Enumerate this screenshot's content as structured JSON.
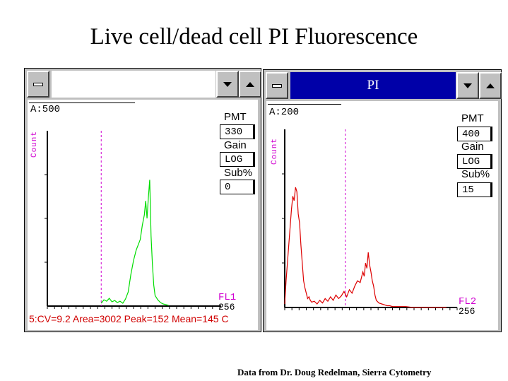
{
  "slide": {
    "title": "Live cell/dead cell PI Fluorescence",
    "credit": "Data from Dr. Doug Redelman, Sierra Cytometry"
  },
  "colors": {
    "window_frame": "#c0c0c0",
    "active_titlebar": "#0000a8",
    "live_trace": "#00dd00",
    "dead_trace": "#dd0000",
    "marker": "#d000d0",
    "stats_text": "#d00000"
  },
  "window_left": {
    "caption": "",
    "region": "A:500",
    "axis_label": "Count",
    "controls": [
      {
        "label": "PMT",
        "value": "330"
      },
      {
        "label": "Gain",
        "value": "LOG"
      },
      {
        "label": "Sub%",
        "value": "0"
      }
    ],
    "x_label": "FL1",
    "x_max_label": "256",
    "stats": "5:CV=9.2 Area=3002 Peak=152 Mean=145 C",
    "icons": [
      "system-menu-icon",
      "minimize-arrow-icon",
      "maximize-arrow-icon"
    ]
  },
  "window_right": {
    "caption": "PI",
    "region": "A:200",
    "axis_label": "Count",
    "controls": [
      {
        "label": "PMT",
        "value": "400"
      },
      {
        "label": "Gain",
        "value": "LOG"
      },
      {
        "label": "Sub%",
        "value": "15"
      }
    ],
    "x_label": "FL2",
    "x_max_label": "256",
    "icons": [
      "system-menu-icon",
      "minimize-arrow-icon",
      "maximize-arrow-icon"
    ]
  },
  "chart_data": [
    {
      "type": "line",
      "title": "",
      "xlabel": "FL1",
      "ylabel": "Count",
      "xlim": [
        0,
        256
      ],
      "ylim": [
        0,
        500
      ],
      "marker_x": 80,
      "series": [
        {
          "x": [
            80,
            84,
            88,
            92,
            96,
            100,
            104,
            108,
            112,
            116,
            120,
            124,
            128,
            132,
            135,
            138,
            141,
            144,
            146,
            148,
            150,
            152,
            154,
            156,
            158,
            160,
            164,
            168,
            172,
            176,
            180
          ],
          "values": [
            8,
            18,
            14,
            22,
            12,
            16,
            10,
            14,
            8,
            20,
            40,
            90,
            130,
            160,
            175,
            190,
            230,
            260,
            300,
            250,
            310,
            360,
            200,
            120,
            60,
            30,
            18,
            10,
            6,
            4,
            2
          ]
        }
      ]
    },
    {
      "type": "line",
      "title": "",
      "xlabel": "FL2",
      "ylabel": "Count",
      "xlim": [
        0,
        256
      ],
      "ylim": [
        0,
        200
      ],
      "marker_x": 90,
      "series": [
        {
          "x": [
            0,
            2,
            4,
            6,
            8,
            10,
            12,
            14,
            16,
            18,
            20,
            22,
            24,
            26,
            28,
            30,
            32,
            34,
            36,
            38,
            40,
            44,
            48,
            52,
            56,
            60,
            64,
            68,
            72,
            76,
            80,
            84,
            88,
            92,
            96,
            100,
            104,
            108,
            112,
            116,
            118,
            120,
            122,
            124,
            126,
            128,
            130,
            132,
            134,
            136,
            140,
            144,
            148,
            152,
            156,
            160,
            170,
            180,
            190,
            200,
            220,
            240
          ],
          "values": [
            4,
            30,
            50,
            70,
            90,
            110,
            125,
            120,
            135,
            130,
            105,
            95,
            70,
            50,
            30,
            22,
            16,
            10,
            12,
            8,
            6,
            7,
            4,
            8,
            5,
            10,
            7,
            12,
            8,
            14,
            10,
            13,
            18,
            12,
            20,
            16,
            24,
            30,
            28,
            40,
            35,
            50,
            44,
            62,
            48,
            40,
            30,
            24,
            14,
            8,
            5,
            4,
            3,
            2,
            2,
            1,
            1,
            1,
            0,
            0,
            0,
            0
          ]
        }
      ]
    }
  ]
}
